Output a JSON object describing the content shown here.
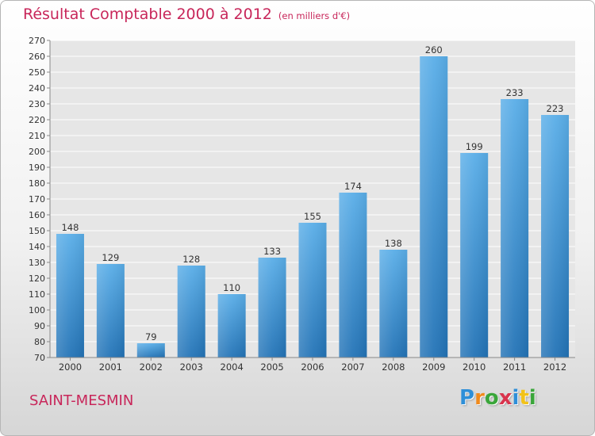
{
  "title": {
    "main": "Résultat Comptable 2000 à 2012",
    "sub": "(en milliers d'€)"
  },
  "city": "SAINT-MESMIN",
  "logo": {
    "letters": [
      "P",
      "r",
      "o",
      "x",
      "i",
      "t",
      "i"
    ],
    "colors": [
      "#2e8fd8",
      "#f08a1c",
      "#3aa63a",
      "#d9344d",
      "#2e8fd8",
      "#f2c218",
      "#3aa63a"
    ]
  },
  "colors": {
    "accent": "#c8265a",
    "bar_top": "#5aaee8",
    "bar_bottom": "#2373b6"
  },
  "chart_data": {
    "type": "bar",
    "title": "Résultat Comptable 2000 à 2012",
    "categories": [
      "2000",
      "2001",
      "2002",
      "2003",
      "2004",
      "2005",
      "2006",
      "2007",
      "2008",
      "2009",
      "2010",
      "2011",
      "2012"
    ],
    "values": [
      148,
      129,
      79,
      128,
      110,
      133,
      155,
      174,
      138,
      260,
      199,
      233,
      223
    ],
    "ylim": [
      70,
      270
    ],
    "yticks": [
      70,
      80,
      90,
      100,
      110,
      120,
      130,
      140,
      150,
      160,
      170,
      180,
      190,
      200,
      210,
      220,
      230,
      240,
      250,
      260,
      270
    ],
    "grid": true,
    "data_labels": true
  }
}
